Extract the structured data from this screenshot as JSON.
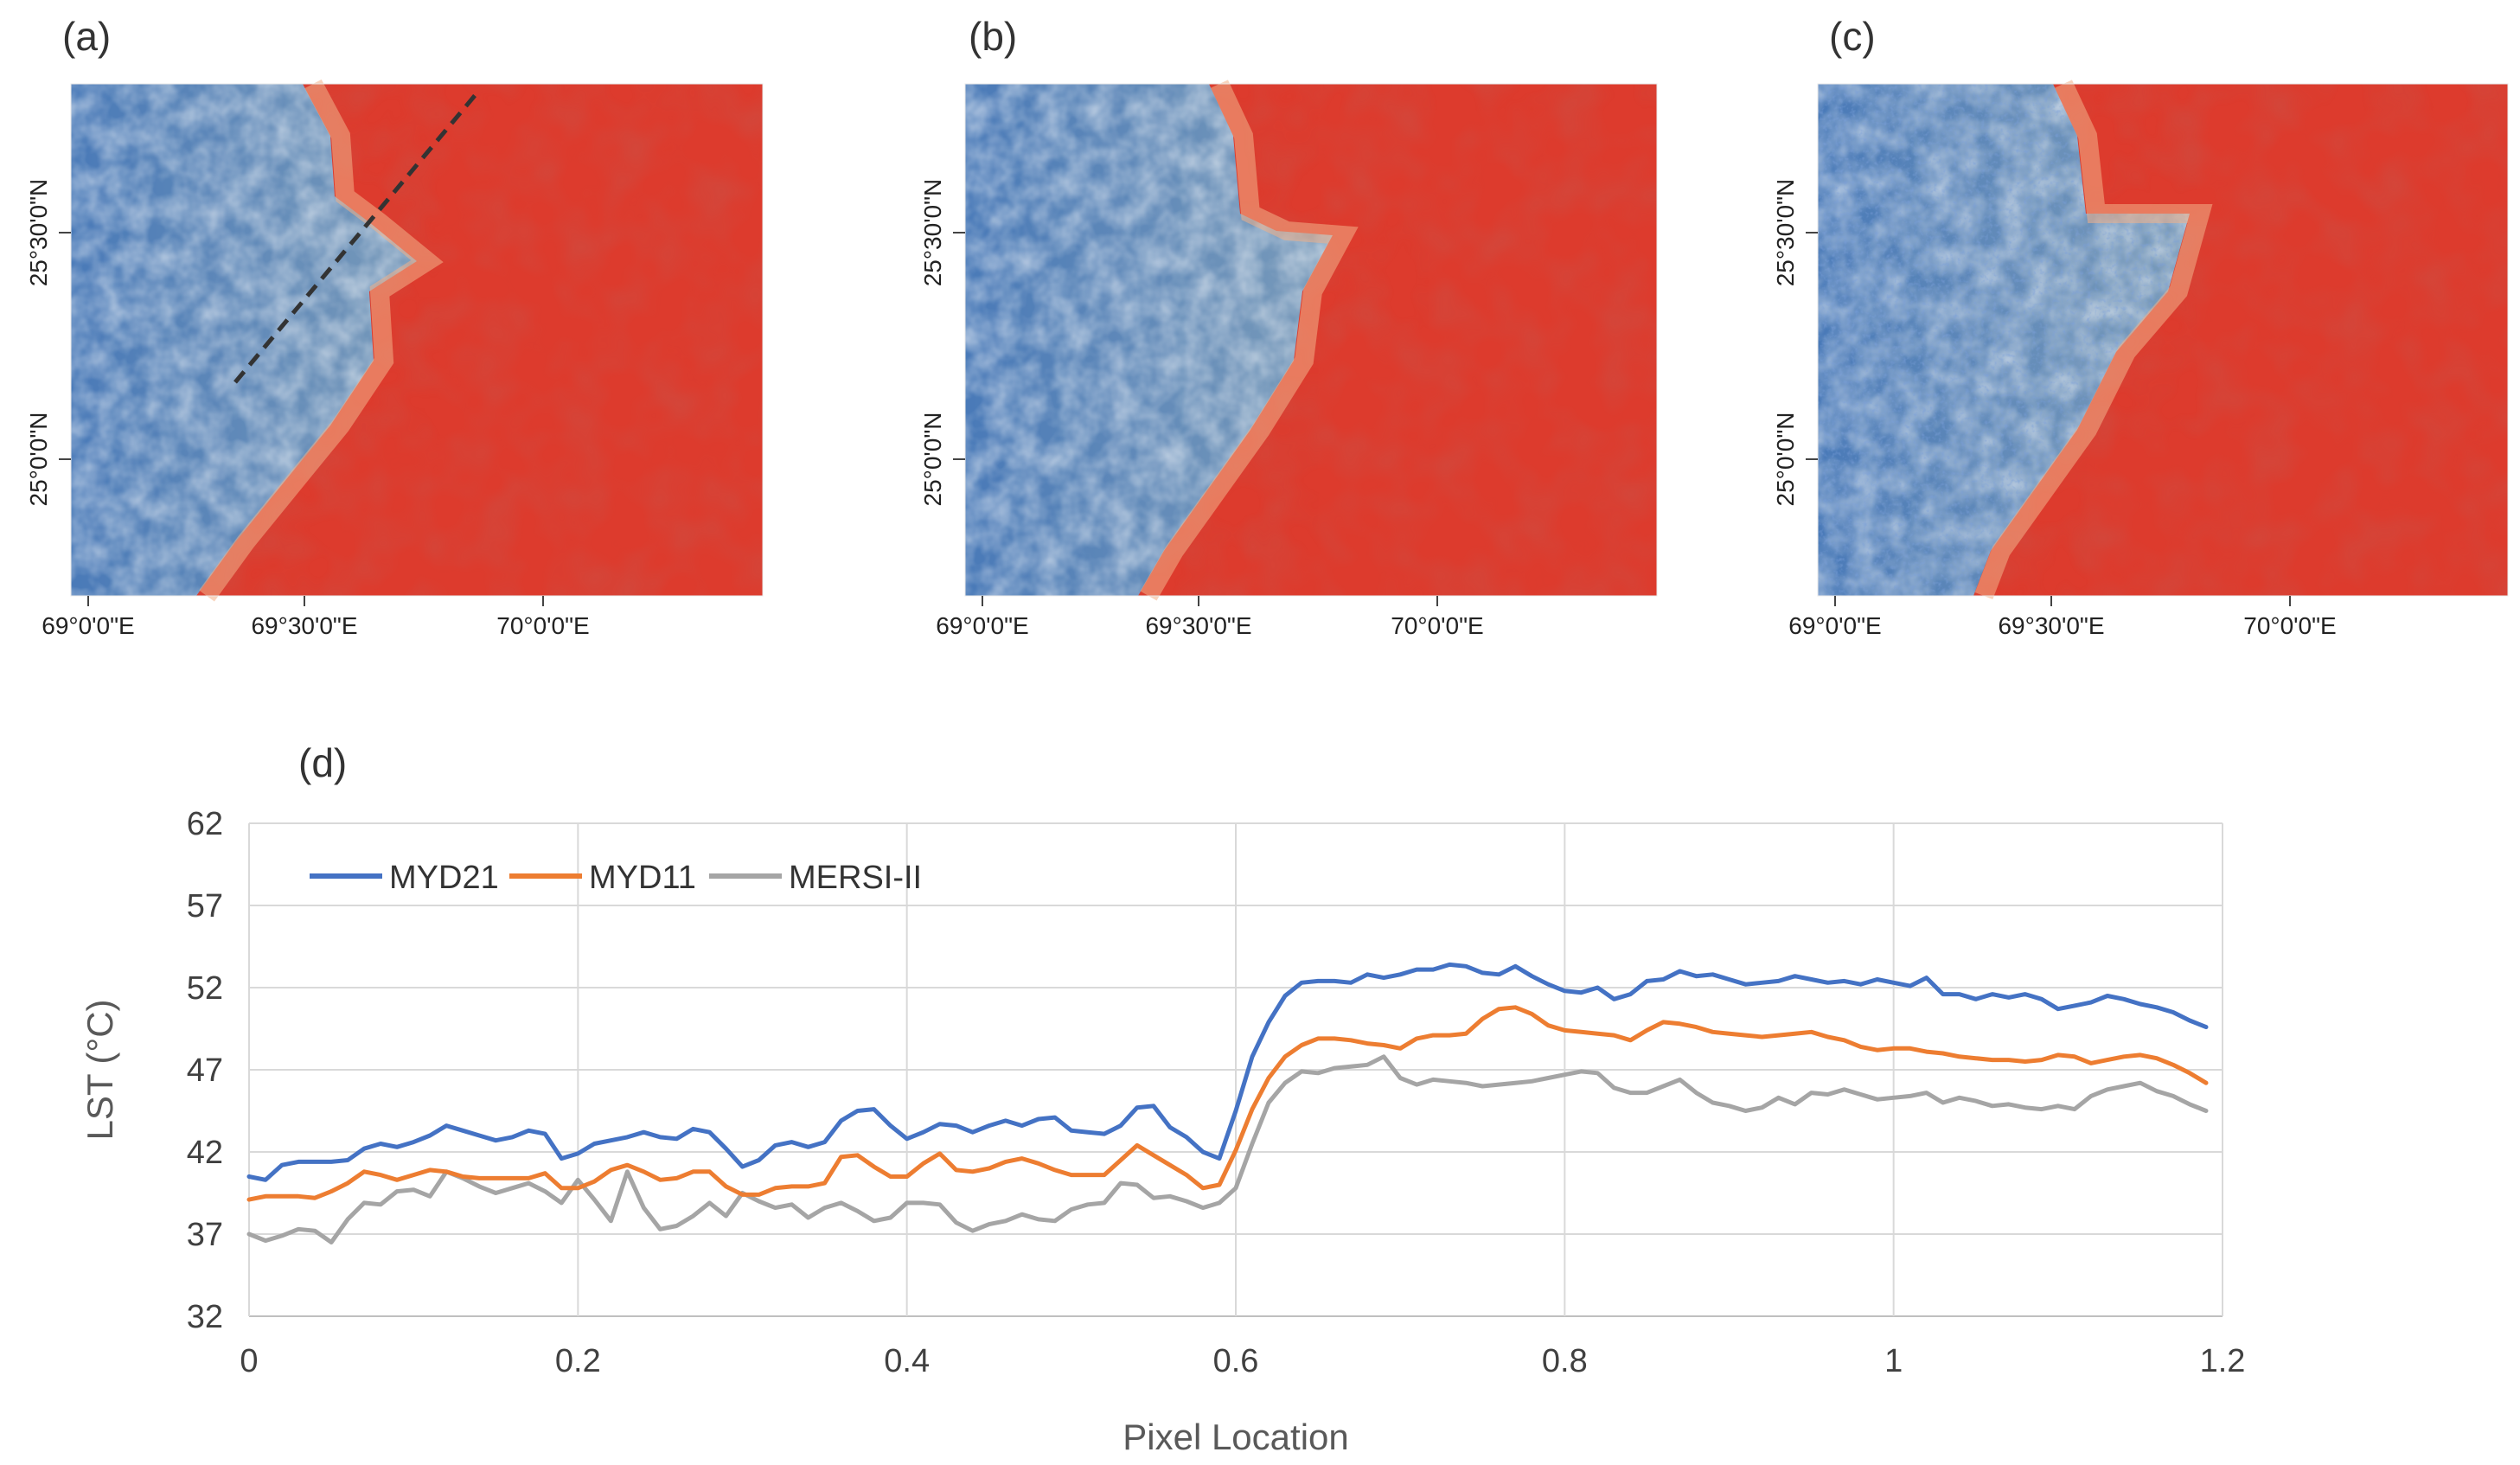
{
  "panels": [
    {
      "label": "(a)",
      "lat_ticks": [
        "25°30'0\"N",
        "25°0'0\"N"
      ],
      "lon_ticks": [
        "69°0'0\"E",
        "69°30'0\"E",
        "70°0'0\"E"
      ],
      "has_transect": true
    },
    {
      "label": "(b)",
      "lat_ticks": [
        "25°30'0\"N",
        "25°0'0\"N"
      ],
      "lon_ticks": [
        "69°0'0\"E",
        "69°30'0\"E",
        "70°0'0\"E"
      ],
      "has_transect": false
    },
    {
      "label": "(c)",
      "lat_ticks": [
        "25°30'0\"N",
        "25°0'0\"N"
      ],
      "lon_ticks": [
        "69°0'0\"E",
        "69°30'0\"E",
        "70°0'0\"E"
      ],
      "has_transect": false
    }
  ],
  "map_colors": {
    "cool": "#4a7ab8",
    "mid": "#f2edc0",
    "warm": "#dd3b2d"
  },
  "chart_panel_label": "(d)",
  "chart_data": {
    "type": "line",
    "xlabel": "Pixel Location",
    "ylabel": "LST (°C)",
    "xlim": [
      0,
      1.2
    ],
    "ylim": [
      32,
      62
    ],
    "x_ticks": [
      "0",
      "0.2",
      "0.4",
      "0.6",
      "0.8",
      "1",
      "1.2"
    ],
    "y_ticks": [
      "32",
      "37",
      "42",
      "47",
      "52",
      "57",
      "62"
    ],
    "grid": true,
    "legend_position": "top-left",
    "x": [
      0,
      0.01,
      0.02,
      0.03,
      0.04,
      0.05,
      0.06,
      0.07,
      0.08,
      0.09,
      0.1,
      0.11,
      0.12,
      0.13,
      0.14,
      0.15,
      0.16,
      0.17,
      0.18,
      0.19,
      0.2,
      0.21,
      0.22,
      0.23,
      0.24,
      0.25,
      0.26,
      0.27,
      0.28,
      0.29,
      0.3,
      0.31,
      0.32,
      0.33,
      0.34,
      0.35,
      0.36,
      0.37,
      0.38,
      0.39,
      0.4,
      0.41,
      0.42,
      0.43,
      0.44,
      0.45,
      0.46,
      0.47,
      0.48,
      0.49,
      0.5,
      0.51,
      0.52,
      0.53,
      0.54,
      0.55,
      0.56,
      0.57,
      0.58,
      0.59,
      0.6,
      0.61,
      0.62,
      0.63,
      0.64,
      0.65,
      0.66,
      0.67,
      0.68,
      0.69,
      0.7,
      0.71,
      0.72,
      0.73,
      0.74,
      0.75,
      0.76,
      0.77,
      0.78,
      0.79,
      0.8,
      0.81,
      0.82,
      0.83,
      0.84,
      0.85,
      0.86,
      0.87,
      0.88,
      0.89,
      0.9,
      0.91,
      0.92,
      0.93,
      0.94,
      0.95,
      0.96,
      0.97,
      0.98,
      0.99,
      1.0,
      1.01,
      1.02,
      1.03,
      1.04,
      1.05,
      1.06,
      1.07,
      1.08,
      1.09,
      1.1,
      1.11,
      1.12,
      1.13,
      1.14,
      1.15,
      1.16,
      1.17,
      1.18,
      1.19
    ],
    "series": [
      {
        "name": "MYD21",
        "color": "#4472c4",
        "values": [
          40.5,
          40.3,
          41.2,
          41.4,
          41.4,
          41.4,
          41.5,
          42.2,
          42.5,
          42.3,
          42.6,
          43.0,
          43.6,
          43.3,
          43.0,
          42.7,
          42.9,
          43.3,
          43.1,
          41.6,
          41.9,
          42.5,
          42.7,
          42.9,
          43.2,
          42.9,
          42.8,
          43.4,
          43.2,
          42.2,
          41.1,
          41.5,
          42.4,
          42.6,
          42.3,
          42.6,
          43.9,
          44.5,
          44.6,
          43.6,
          42.8,
          43.2,
          43.7,
          43.6,
          43.2,
          43.6,
          43.9,
          43.6,
          44.0,
          44.1,
          43.3,
          43.2,
          43.1,
          43.6,
          44.7,
          44.8,
          43.5,
          42.9,
          42.0,
          41.6,
          44.5,
          47.8,
          49.9,
          51.5,
          52.3,
          52.4,
          52.4,
          52.3,
          52.8,
          52.6,
          52.8,
          53.1,
          53.1,
          53.4,
          53.3,
          52.9,
          52.8,
          53.3,
          52.7,
          52.2,
          51.8,
          51.7,
          52.0,
          51.3,
          51.6,
          52.4,
          52.5,
          53.0,
          52.7,
          52.8,
          52.5,
          52.2,
          52.3,
          52.4,
          52.7,
          52.5,
          52.3,
          52.4,
          52.2,
          52.5,
          52.3,
          52.1,
          52.6,
          51.6,
          51.6,
          51.3,
          51.6,
          51.4,
          51.6,
          51.3,
          50.7,
          50.9,
          51.1,
          51.5,
          51.3,
          51.0,
          50.8,
          50.5,
          50.0,
          49.6
        ]
      },
      {
        "name": "MYD11",
        "color": "#ed7d31",
        "values": [
          39.1,
          39.3,
          39.3,
          39.3,
          39.2,
          39.6,
          40.1,
          40.8,
          40.6,
          40.3,
          40.6,
          40.9,
          40.8,
          40.5,
          40.4,
          40.4,
          40.4,
          40.4,
          40.7,
          39.8,
          39.8,
          40.2,
          40.9,
          41.2,
          40.8,
          40.3,
          40.4,
          40.8,
          40.8,
          39.9,
          39.4,
          39.4,
          39.8,
          39.9,
          39.9,
          40.1,
          41.7,
          41.8,
          41.1,
          40.5,
          40.5,
          41.3,
          41.9,
          40.9,
          40.8,
          41.0,
          41.4,
          41.6,
          41.3,
          40.9,
          40.6,
          40.6,
          40.6,
          41.5,
          42.4,
          41.8,
          41.2,
          40.6,
          39.8,
          40.0,
          42.1,
          44.6,
          46.5,
          47.8,
          48.5,
          48.9,
          48.9,
          48.8,
          48.6,
          48.5,
          48.3,
          48.9,
          49.1,
          49.1,
          49.2,
          50.1,
          50.7,
          50.8,
          50.4,
          49.7,
          49.4,
          49.3,
          49.2,
          49.1,
          48.8,
          49.4,
          49.9,
          49.8,
          49.6,
          49.3,
          49.2,
          49.1,
          49.0,
          49.1,
          49.2,
          49.3,
          49.0,
          48.8,
          48.4,
          48.2,
          48.3,
          48.3,
          48.1,
          48.0,
          47.8,
          47.7,
          47.6,
          47.6,
          47.5,
          47.6,
          47.9,
          47.8,
          47.4,
          47.6,
          47.8,
          47.9,
          47.7,
          47.3,
          46.8,
          46.2
        ]
      },
      {
        "name": "MERSI-II",
        "color": "#a5a5a5",
        "values": [
          37.0,
          36.6,
          36.9,
          37.3,
          37.2,
          36.5,
          37.9,
          38.9,
          38.8,
          39.6,
          39.7,
          39.3,
          40.8,
          40.4,
          39.9,
          39.5,
          39.8,
          40.1,
          39.6,
          38.9,
          40.3,
          39.1,
          37.8,
          40.8,
          38.6,
          37.3,
          37.5,
          38.1,
          38.9,
          38.1,
          39.5,
          39.0,
          38.6,
          38.8,
          38.0,
          38.6,
          38.9,
          38.4,
          37.8,
          38.0,
          38.9,
          38.9,
          38.8,
          37.7,
          37.2,
          37.6,
          37.8,
          38.2,
          37.9,
          37.8,
          38.5,
          38.8,
          38.9,
          40.1,
          40.0,
          39.2,
          39.3,
          39.0,
          38.6,
          38.9,
          39.8,
          42.5,
          45.0,
          46.2,
          46.9,
          46.8,
          47.1,
          47.2,
          47.3,
          47.8,
          46.5,
          46.1,
          46.4,
          46.3,
          46.2,
          46.0,
          46.1,
          46.2,
          46.3,
          46.5,
          46.7,
          46.9,
          46.8,
          45.9,
          45.6,
          45.6,
          46.0,
          46.4,
          45.6,
          45.0,
          44.8,
          44.5,
          44.7,
          45.3,
          44.9,
          45.6,
          45.5,
          45.8,
          45.5,
          45.2,
          45.3,
          45.4,
          45.6,
          45.0,
          45.3,
          45.1,
          44.8,
          44.9,
          44.7,
          44.6,
          44.8,
          44.6,
          45.4,
          45.8,
          46.0,
          46.2,
          45.7,
          45.4,
          44.9,
          44.5
        ]
      }
    ]
  }
}
